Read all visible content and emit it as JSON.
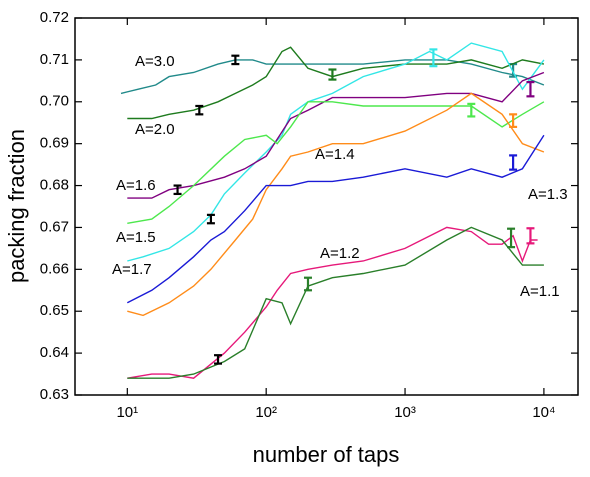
{
  "chart_data": {
    "type": "line",
    "xlabel": "number of taps",
    "ylabel": "packing fraction",
    "xscale": "log",
    "xlim": [
      4.2,
      17600
    ],
    "ylim": [
      0.63,
      0.72
    ],
    "xticks": [
      {
        "value": 10,
        "label": "10¹"
      },
      {
        "value": 100,
        "label": "10²"
      },
      {
        "value": 1000,
        "label": "10³"
      },
      {
        "value": 10000,
        "label": "10⁴"
      }
    ],
    "yticks": [
      0.63,
      0.64,
      0.65,
      0.66,
      0.67,
      0.68,
      0.69,
      {
        "value": 0.7,
        "label": "0.70"
      },
      0.71,
      0.72
    ],
    "series": [
      {
        "name": "A=3.0",
        "color": "#218a8a",
        "x": [
          9,
          12,
          16,
          20,
          30,
          45,
          60,
          80,
          100,
          150,
          200,
          300,
          500,
          1000,
          2000,
          3000,
          5000,
          7000,
          10000
        ],
        "values": [
          0.702,
          0.703,
          0.704,
          0.706,
          0.707,
          0.709,
          0.71,
          0.71,
          0.709,
          0.709,
          0.709,
          0.709,
          0.709,
          0.71,
          0.71,
          0.709,
          0.707,
          0.706,
          0.704
        ],
        "errorbars": [
          {
            "x": 60,
            "y": 0.71,
            "err": 0.001,
            "color": "#000000"
          },
          {
            "x": 6000,
            "y": 0.7075,
            "err": 0.0015,
            "color": "#218a8a"
          }
        ]
      },
      {
        "name": "A=2.0",
        "color": "#1e7b1e",
        "x": [
          10,
          15,
          20,
          30,
          45,
          60,
          80,
          100,
          130,
          150,
          200,
          300,
          500,
          1000,
          2000,
          3000,
          5000,
          7000,
          10000
        ],
        "values": [
          0.696,
          0.696,
          0.697,
          0.698,
          0.7,
          0.702,
          0.704,
          0.706,
          0.712,
          0.713,
          0.708,
          0.706,
          0.708,
          0.709,
          0.709,
          0.71,
          0.708,
          0.71,
          0.709
        ],
        "errorbars": [
          {
            "x": 33,
            "y": 0.698,
            "err": 0.001,
            "color": "#000000"
          },
          {
            "x": 300,
            "y": 0.7065,
            "err": 0.0012,
            "color": "#1e7b1e"
          }
        ]
      },
      {
        "name": "A=1.7",
        "color": "#33e6e6",
        "x": [
          10,
          13,
          20,
          30,
          40,
          50,
          70,
          100,
          130,
          150,
          200,
          300,
          500,
          1000,
          1500,
          2000,
          3000,
          5000,
          7000,
          10000
        ],
        "values": [
          0.662,
          0.663,
          0.665,
          0.669,
          0.673,
          0.678,
          0.683,
          0.688,
          0.692,
          0.697,
          0.7,
          0.702,
          0.706,
          0.709,
          0.712,
          0.71,
          0.714,
          0.712,
          0.703,
          0.71
        ],
        "errorbars": [
          {
            "x": 1600,
            "y": 0.7105,
            "err": 0.002,
            "color": "#33e6e6"
          }
        ]
      },
      {
        "name": "A=1.6",
        "color": "#800080",
        "x": [
          10,
          15,
          20,
          30,
          50,
          70,
          100,
          150,
          200,
          300,
          500,
          1000,
          2000,
          3000,
          5000,
          7000,
          10000
        ],
        "values": [
          0.677,
          0.677,
          0.679,
          0.68,
          0.682,
          0.684,
          0.687,
          0.696,
          0.698,
          0.701,
          0.701,
          0.701,
          0.702,
          0.702,
          0.7,
          0.705,
          0.707
        ],
        "errorbars": [
          {
            "x": 23,
            "y": 0.679,
            "err": 0.001,
            "color": "#000000"
          },
          {
            "x": 8000,
            "y": 0.703,
            "err": 0.0017,
            "color": "#800080"
          }
        ]
      },
      {
        "name": "A=1.5",
        "color": "#4de84d",
        "x": [
          10,
          15,
          20,
          30,
          50,
          70,
          100,
          120,
          150,
          200,
          300,
          500,
          1000,
          2000,
          3000,
          5000,
          7000,
          10000
        ],
        "values": [
          0.671,
          0.672,
          0.675,
          0.68,
          0.687,
          0.691,
          0.692,
          0.69,
          0.694,
          0.7,
          0.7,
          0.699,
          0.699,
          0.699,
          0.699,
          0.694,
          0.697,
          0.7
        ],
        "errorbars": [
          {
            "x": 40,
            "y": 0.672,
            "err": 0.001,
            "color": "#000000"
          },
          {
            "x": 3000,
            "y": 0.698,
            "err": 0.0015,
            "color": "#4de84d"
          }
        ]
      },
      {
        "name": "A=1.4",
        "color": "#ff8c1a",
        "x": [
          10,
          13,
          20,
          30,
          40,
          60,
          80,
          100,
          130,
          150,
          200,
          300,
          500,
          1000,
          2000,
          3000,
          5000,
          7000,
          10000
        ],
        "values": [
          0.65,
          0.649,
          0.652,
          0.656,
          0.66,
          0.667,
          0.672,
          0.679,
          0.684,
          0.687,
          0.688,
          0.69,
          0.69,
          0.693,
          0.698,
          0.702,
          0.697,
          0.69,
          0.688
        ],
        "errorbars": [
          {
            "x": 6000,
            "y": 0.6955,
            "err": 0.0015,
            "color": "#ff8c1a"
          }
        ]
      },
      {
        "name": "A=1.3",
        "color": "#1a1ad6",
        "x": [
          10,
          15,
          20,
          30,
          40,
          50,
          70,
          100,
          150,
          200,
          300,
          500,
          1000,
          2000,
          3000,
          5000,
          7000,
          10000
        ],
        "values": [
          0.652,
          0.655,
          0.658,
          0.663,
          0.667,
          0.669,
          0.674,
          0.68,
          0.68,
          0.681,
          0.681,
          0.682,
          0.684,
          0.682,
          0.684,
          0.682,
          0.684,
          0.692
        ],
        "errorbars": [
          {
            "x": 6000,
            "y": 0.6855,
            "err": 0.0017,
            "color": "#1a1ad6"
          }
        ]
      },
      {
        "name": "A=1.2",
        "color": "#e6197a",
        "x": [
          10,
          15,
          20,
          30,
          50,
          70,
          100,
          120,
          150,
          200,
          300,
          500,
          1000,
          2000,
          3000,
          4000,
          5000,
          6000,
          7000,
          8000,
          9000
        ],
        "values": [
          0.634,
          0.635,
          0.635,
          0.634,
          0.64,
          0.645,
          0.651,
          0.655,
          0.659,
          0.66,
          0.661,
          0.662,
          0.665,
          0.67,
          0.669,
          0.666,
          0.666,
          0.668,
          0.662,
          0.667,
          0.667
        ],
        "errorbars": [
          {
            "x": 8000,
            "y": 0.668,
            "err": 0.0018,
            "color": "#e6197a"
          }
        ]
      },
      {
        "name": "A=1.1",
        "color": "#2a7f2a",
        "x": [
          10,
          15,
          20,
          30,
          50,
          70,
          100,
          130,
          150,
          200,
          300,
          500,
          1000,
          2000,
          3000,
          5000,
          7000,
          10000
        ],
        "values": [
          0.634,
          0.634,
          0.634,
          0.635,
          0.638,
          0.641,
          0.653,
          0.652,
          0.647,
          0.656,
          0.658,
          0.659,
          0.661,
          0.667,
          0.67,
          0.667,
          0.661,
          0.661
        ],
        "errorbars": [
          {
            "x": 45,
            "y": 0.6385,
            "err": 0.001,
            "color": "#000000"
          },
          {
            "x": 200,
            "y": 0.6565,
            "err": 0.0015,
            "color": "#2a7f2a"
          },
          {
            "x": 5800,
            "y": 0.6675,
            "err": 0.0022,
            "color": "#2a7f2a"
          }
        ]
      }
    ]
  }
}
